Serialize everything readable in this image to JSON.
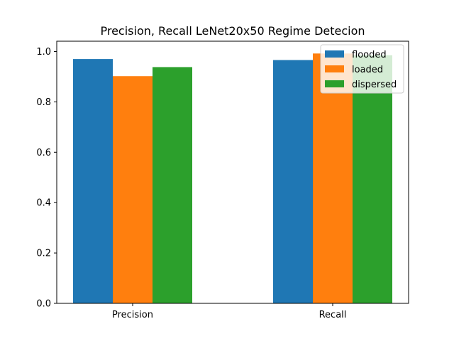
{
  "chart_data": {
    "type": "bar",
    "title": "Precision, Recall LeNet20x50 Regime Detecion",
    "xlabel": "",
    "ylabel": "",
    "categories": [
      "Precision",
      "Recall"
    ],
    "series": [
      {
        "name": "flooded",
        "color": "#1f77b4",
        "values": [
          0.97,
          0.966
        ]
      },
      {
        "name": "loaded",
        "color": "#ff7f0e",
        "values": [
          0.902,
          0.992
        ]
      },
      {
        "name": "dispersed",
        "color": "#2ca02c",
        "values": [
          0.938,
          0.985
        ]
      }
    ],
    "ylim": [
      0,
      1.0
    ],
    "yticks": [
      0.0,
      0.2,
      0.4,
      0.6,
      0.8,
      1.0
    ],
    "ytick_labels": [
      "0.0",
      "0.2",
      "0.4",
      "0.6",
      "0.8",
      "1.0"
    ],
    "grid": false,
    "legend_position": "top-right"
  }
}
